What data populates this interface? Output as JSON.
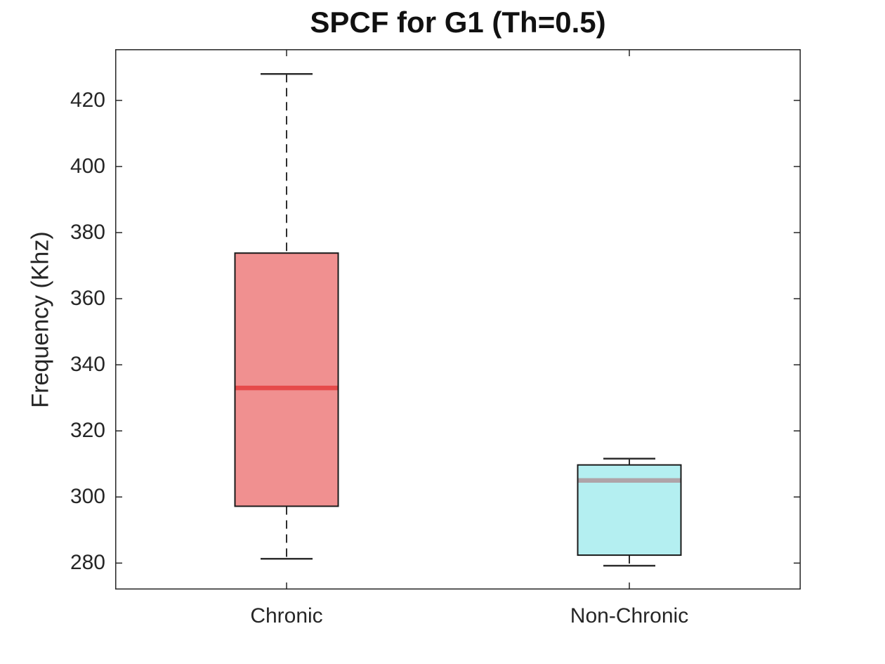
{
  "figure": {
    "title": "SPCF for G1 (Th=0.5)"
  },
  "chart_data": {
    "type": "box",
    "title": "SPCF for G1 (Th=0.5)",
    "xlabel": "",
    "ylabel": "Frequency (Khz)",
    "ylim": [
      272,
      435.5
    ],
    "yticks": [
      280,
      300,
      320,
      340,
      360,
      380,
      400,
      420
    ],
    "categories": [
      "Chronic",
      "Non-Chronic"
    ],
    "grid": false,
    "legend": null,
    "series": [
      {
        "name": "Chronic",
        "whisker_low": 281.3,
        "q1": 297.2,
        "median": 333,
        "q3": 373.8,
        "whisker_high": 428,
        "outliers": [],
        "box_fill": "#F09090",
        "box_edge": "#1A1A1A",
        "median_color": "#E64A4A"
      },
      {
        "name": "Non-Chronic",
        "whisker_low": 279.2,
        "q1": 282.4,
        "median": 305,
        "q3": 309.7,
        "whisker_high": 311.6,
        "outliers": [],
        "box_fill": "#B4EFF1",
        "box_edge": "#1A1A1A",
        "median_color": "#AFA4A9"
      }
    ],
    "colors": {
      "axis": "#262626",
      "whisker": "#2E2E2E",
      "background": "#FFFFFF",
      "text": "#262626"
    }
  }
}
